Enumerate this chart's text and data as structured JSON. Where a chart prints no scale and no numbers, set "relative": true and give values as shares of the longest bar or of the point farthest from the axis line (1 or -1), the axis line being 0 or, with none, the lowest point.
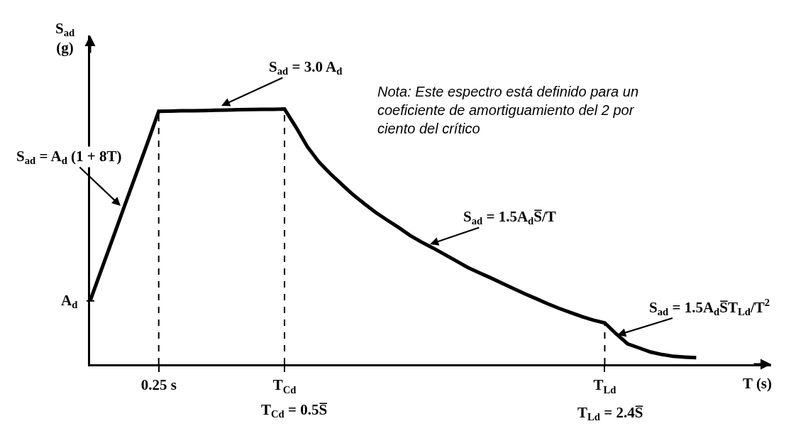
{
  "chart_data": {
    "type": "line",
    "relative": true,
    "ylabel": "S$_{ad}$\n(g)",
    "xlabel": "T (s)",
    "categories": [
      null,
      null,
      null,
      null,
      null,
      null,
      "0.25 s",
      null,
      null,
      null,
      null,
      null,
      null,
      null,
      null,
      null,
      null,
      "T$_{Cd}$",
      null,
      null,
      null,
      null,
      null,
      null,
      null,
      null,
      null,
      null,
      null,
      null,
      null,
      null,
      null,
      null,
      null,
      null,
      null,
      null,
      null,
      null,
      null,
      null,
      null,
      null,
      null,
      "T$_{Ld}$",
      null,
      null,
      null,
      null,
      null,
      null,
      null,
      null
    ],
    "series": [
      {
        "color": "#000000",
        "values": [
          0.248,
          0.372,
          0.495,
          0.619,
          0.742,
          0.865,
          0.991,
          0.992,
          0.993,
          0.993,
          0.994,
          0.995,
          0.996,
          0.997,
          0.998,
          0.999,
          0.999,
          1,
          0.929,
          0.852,
          0.793,
          0.747,
          0.705,
          0.664,
          0.628,
          0.594,
          0.564,
          0.535,
          0.504,
          0.478,
          0.455,
          0.43,
          0.405,
          0.38,
          0.359,
          0.339,
          0.318,
          0.297,
          0.276,
          0.257,
          0.237,
          0.219,
          0.203,
          0.187,
          0.173,
          0.162,
          0.119,
          0.08,
          0.064,
          0.048,
          0.038,
          0.031,
          0.028,
          0.026
        ]
      }
    ],
    "tick_labels": "x",
    "marker": "none",
    "line_style": "solid",
    "ref_lines": [
      {
        "axis": "x",
        "value": "0.25 s",
        "line_style": "dashed"
      },
      {
        "axis": "x",
        "value": "T$_{Cd}$",
        "line_style": "dashed"
      },
      {
        "axis": "x",
        "value": "T$_{Ld}$",
        "line_style": "dashed"
      }
    ],
    "annotations": [
      "S$_{ad}$ = 3.0 A$_{d}$",
      "S$_{ad}$ = A$_{d}$ (1 + 8T)",
      "S$_{ad}$ = 1.5A$_{d}$S̅/T",
      "S$_{ad}$ = 1.5A$_{d}$S̅T$_{Ld}$/T$^{2}$",
      "A$_{d}$",
      "T$_{Cd}$ = 0.5S̅",
      "T$_{Ld}$ = 2.4S̅",
      "Nota: Este espectro está definido para un\ncoeficiente de amortiguamiento del 2 por\nciento del crítico"
    ]
  }
}
